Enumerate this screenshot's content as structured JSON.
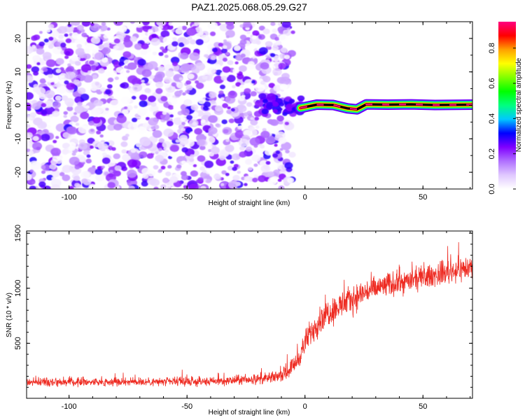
{
  "title": "PAZ1.2025.068.05.29.G27",
  "chart_data": [
    {
      "type": "heatmap",
      "xlabel": "Height of straight line (km)",
      "ylabel": "Frequency (Hz)",
      "xlim": [
        -118,
        71
      ],
      "ylim": [
        -25,
        25
      ],
      "xticks": [
        "-100",
        "-50",
        "0",
        "50"
      ],
      "yticks": [
        "20",
        "10",
        "0",
        "-10",
        "-20"
      ],
      "colorbar": {
        "label": "Normalized spectral amplitude",
        "range": [
          0,
          0.95
        ],
        "ticks": [
          "0.0",
          "0.2",
          "0.4",
          "0.6",
          "0.8"
        ],
        "colors": [
          "#ffffff",
          "#e0c8ff",
          "#b070ff",
          "#8000ff",
          "#0000ff",
          "#00c8ff",
          "#00ff80",
          "#00ff00",
          "#80ff00",
          "#ffff00",
          "#ffa000",
          "#ff0000",
          "#ff0080"
        ]
      },
      "features": {
        "noise_region_x": [
          -118,
          -5
        ],
        "noise_amplitude_range": [
          0.0,
          0.3
        ],
        "onset_cluster_x": [
          -20,
          0
        ],
        "onset_cluster_amplitude": 0.3,
        "tone_start_x": -2,
        "tone_track": [
          [
            -2,
            -0.8
          ],
          [
            5,
            0.2
          ],
          [
            12,
            0.1
          ],
          [
            18,
            -0.9
          ],
          [
            22,
            -1.2
          ],
          [
            26,
            0.3
          ],
          [
            35,
            0.2
          ],
          [
            45,
            0.3
          ],
          [
            55,
            0.1
          ],
          [
            71,
            0.2
          ]
        ],
        "tone_amplitude": 0.95
      }
    },
    {
      "type": "line",
      "xlabel": "Height of straight line (km)",
      "ylabel": "SNR (10 * v/v)",
      "xlim": [
        -118,
        71
      ],
      "ylim": [
        0,
        1520
      ],
      "xticks": [
        "-100",
        "-50",
        "0",
        "50"
      ],
      "yticks": [
        "1500",
        "1000",
        "500"
      ],
      "series": [
        {
          "color": "#ee2b22",
          "envelope_x": [
            -118,
            -40,
            -15,
            -8,
            -3,
            0,
            3,
            8,
            15,
            25,
            35,
            45,
            55,
            65,
            71
          ],
          "envelope_mean": [
            150,
            150,
            180,
            230,
            350,
            500,
            620,
            760,
            840,
            960,
            1030,
            1070,
            1120,
            1170,
            1190
          ],
          "noise_spread": [
            45,
            45,
            55,
            70,
            100,
            130,
            140,
            150,
            150,
            140,
            130,
            120,
            120,
            130,
            140
          ]
        }
      ]
    }
  ]
}
